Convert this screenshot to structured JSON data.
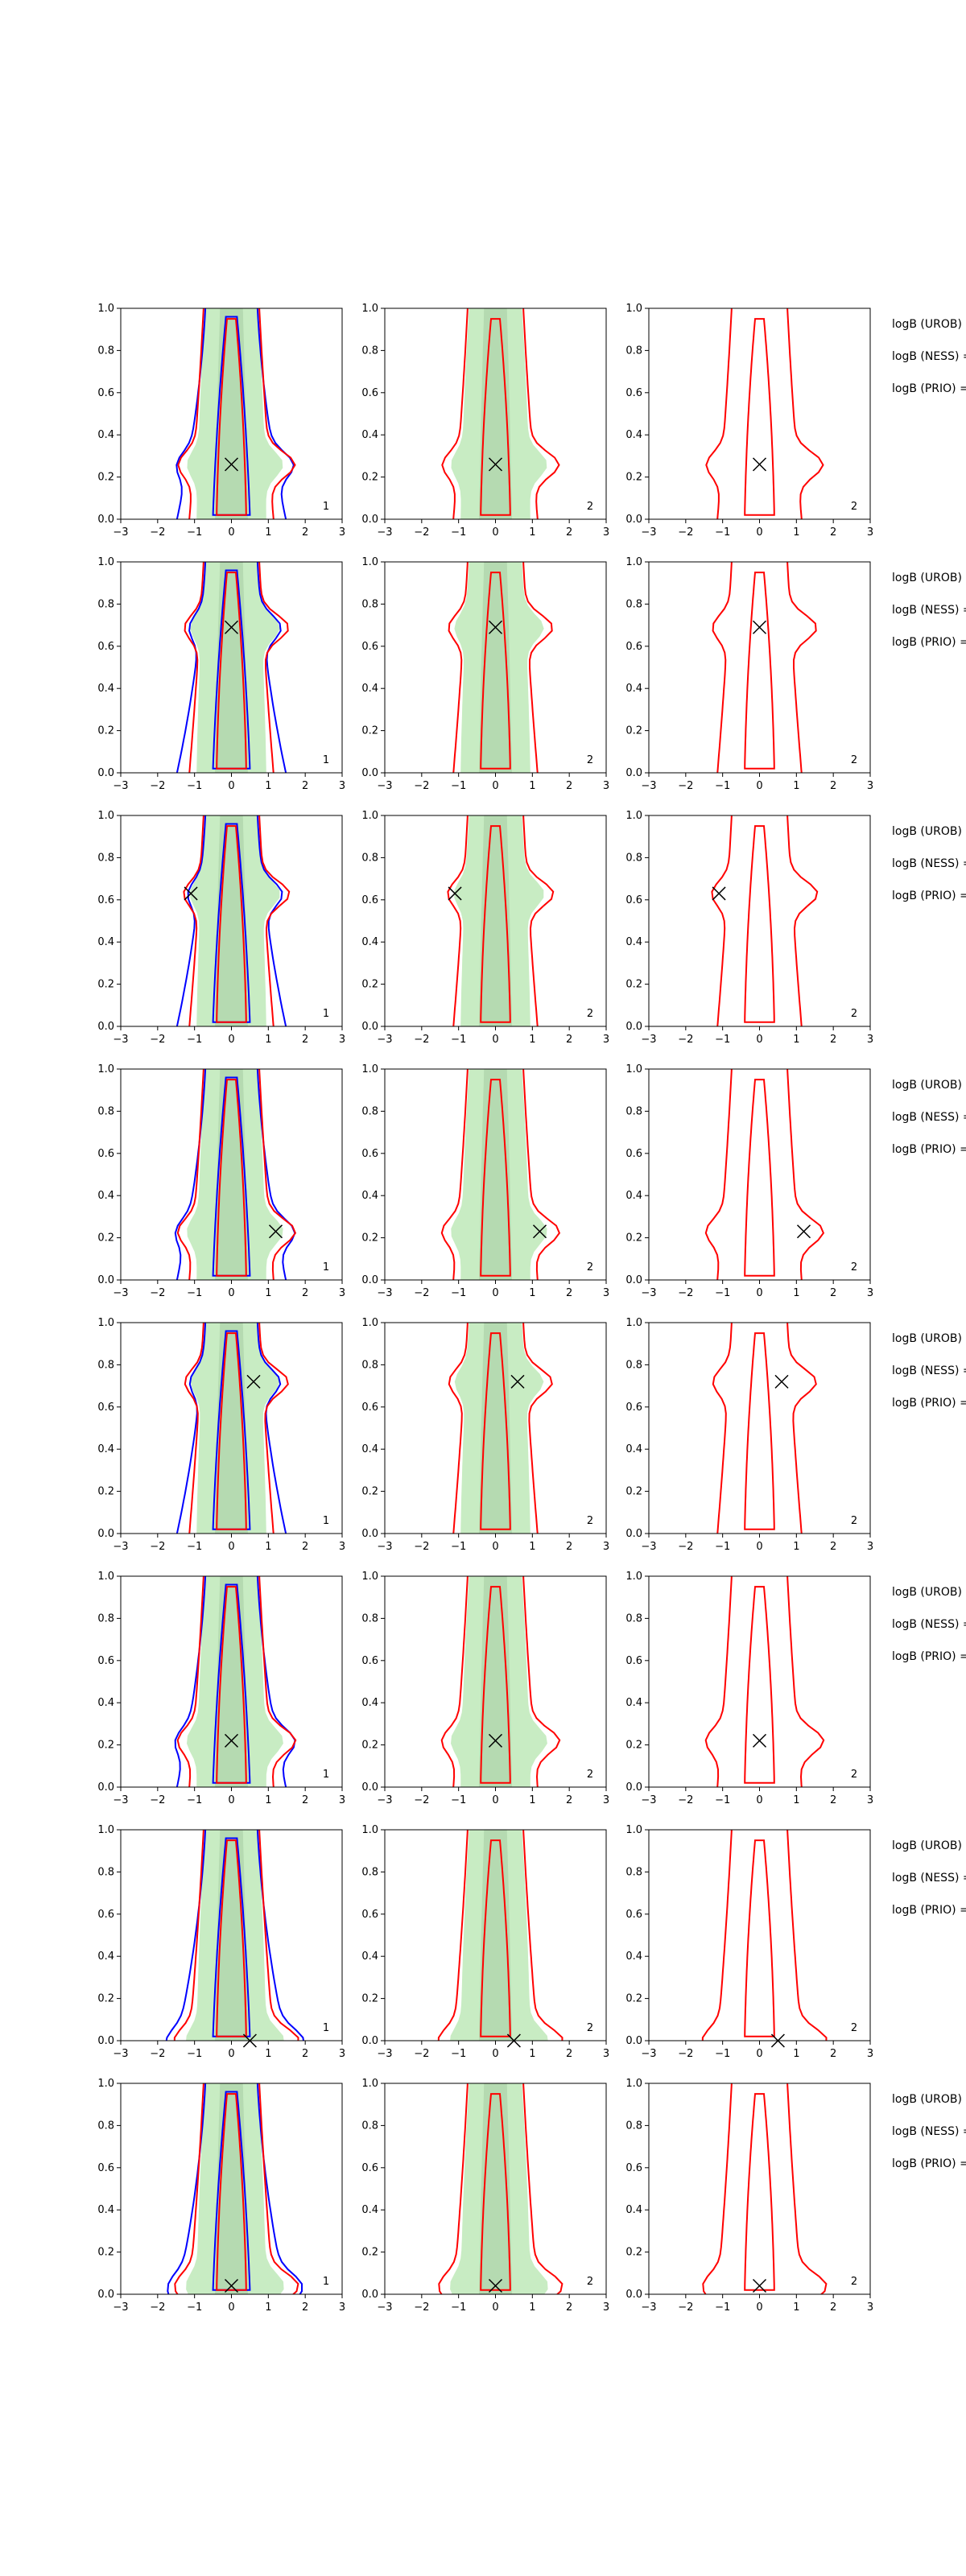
{
  "colors": {
    "background": "#ffffff",
    "axes": "#000000",
    "blue": "#0000ff",
    "red": "#ff0000",
    "fill_green": "#c8ecc3",
    "fill_green_dark": "#a9cfa5"
  },
  "chart_data": {
    "type": "contour",
    "grid": false,
    "layout": {
      "rows": 8,
      "cols": 3
    },
    "xlim": [
      -3,
      3
    ],
    "ylim": [
      0,
      1
    ],
    "x_ticks": [
      "−3",
      "−2",
      "−1",
      "0",
      "1",
      "2",
      "3"
    ],
    "y_ticks": [
      "0.0",
      "0.2",
      "0.4",
      "0.6",
      "0.8",
      "1.0"
    ],
    "side_labels": [
      "logB (UROB) =",
      "logB (NESS) =",
      "logB (PRIO) ="
    ],
    "rows": [
      {
        "marker": [
          0.0,
          0.26
        ],
        "panel_numbers": [
          "1",
          "2",
          "2"
        ]
      },
      {
        "marker": [
          0.0,
          0.69
        ],
        "panel_numbers": [
          "1",
          "2",
          "2"
        ]
      },
      {
        "marker": [
          -1.1,
          0.63
        ],
        "panel_numbers": [
          "1",
          "2",
          "2"
        ]
      },
      {
        "marker": [
          1.2,
          0.23
        ],
        "panel_numbers": [
          "1",
          "2",
          "2"
        ]
      },
      {
        "marker": [
          0.6,
          0.72
        ],
        "panel_numbers": [
          "1",
          "2",
          "2"
        ]
      },
      {
        "marker": [
          0.0,
          0.22
        ],
        "panel_numbers": [
          "1",
          "2",
          "2"
        ]
      },
      {
        "marker": [
          0.5,
          0.0
        ],
        "panel_numbers": [
          "1",
          "2",
          "2"
        ]
      },
      {
        "marker": [
          0.0,
          0.04
        ],
        "panel_numbers": [
          "1",
          "2",
          "2"
        ]
      }
    ],
    "panel_series": [
      {
        "panel": 1,
        "series": [
          "blue contours",
          "red contours",
          "green filled region"
        ]
      },
      {
        "panel": 2,
        "series": [
          "red contours",
          "green filled region"
        ]
      },
      {
        "panel": 3,
        "series": [
          "red contours"
        ]
      }
    ]
  }
}
